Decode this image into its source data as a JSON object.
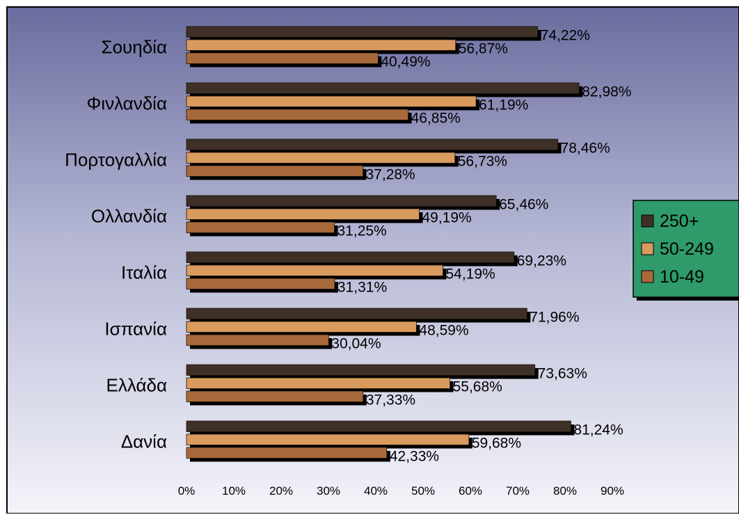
{
  "chart_data": {
    "type": "bar",
    "orientation": "horizontal",
    "categories": [
      "Σουηδία",
      "Φινλανδία",
      "Πορτογαλλία",
      "Ολλανδία",
      "Ιταλία",
      "Ισπανία",
      "Ελλάδα",
      "Δανία"
    ],
    "series": [
      {
        "name": "250+",
        "values": [
          74.22,
          82.98,
          78.46,
          65.46,
          69.23,
          71.96,
          73.63,
          81.24
        ],
        "labels": [
          "74,22%",
          "82,98%",
          "78,46%",
          "65,46%",
          "69,23%",
          "71,96%",
          "73,63%",
          "81,24%"
        ]
      },
      {
        "name": "50-249",
        "values": [
          56.87,
          61.19,
          56.73,
          49.19,
          54.19,
          48.59,
          55.68,
          59.68
        ],
        "labels": [
          "56,87%",
          "61,19%",
          "56,73%",
          "49,19%",
          "54,19%",
          "48,59%",
          "55,68%",
          "59,68%"
        ]
      },
      {
        "name": "10-49",
        "values": [
          40.49,
          46.85,
          37.28,
          31.25,
          31.31,
          30.04,
          37.33,
          42.33
        ],
        "labels": [
          "40,49%",
          "46,85%",
          "37,28%",
          "31,25%",
          "31,31%",
          "30,04%",
          "37,33%",
          "42,33%"
        ]
      }
    ],
    "xlim": [
      0,
      90
    ],
    "xticks": [
      0,
      10,
      20,
      30,
      40,
      50,
      60,
      70,
      80,
      90
    ],
    "xtick_labels": [
      "0%",
      "10%",
      "20%",
      "30%",
      "40%",
      "50%",
      "60%",
      "70%",
      "80%",
      "90%"
    ],
    "legend_position": "right",
    "colors": {
      "250+": "#3e3026",
      "50-249": "#d99a5e",
      "10-49": "#a8693a",
      "legend_background": "#2f9a6a",
      "plot_background_top": "#6a6c9e",
      "plot_background_bottom": "#f4f4fa"
    }
  }
}
